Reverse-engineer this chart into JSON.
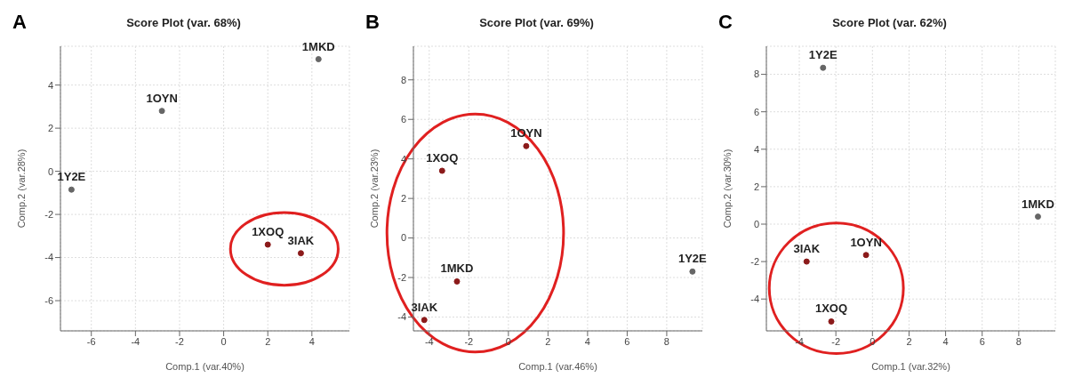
{
  "chart_data": [
    {
      "type": "scatter",
      "title": "Score Plot (var. 68%)",
      "xlabel": "Comp.1 (var.40%)",
      "ylabel": "Comp.2 (var.28%)",
      "xlim": [
        -7.4,
        5.7
      ],
      "ylim": [
        -7.4,
        5.8
      ],
      "xticks": [
        -6,
        -4,
        -2,
        0,
        2,
        4
      ],
      "yticks": [
        -6,
        -4,
        -2,
        0,
        2,
        4
      ],
      "grid": true,
      "marker": "circle",
      "series": [
        {
          "color": "#666666",
          "x": [
            4.3,
            -2.8,
            -6.9
          ],
          "values": [
            5.2,
            2.8,
            -0.85
          ]
        },
        {
          "color": "#8b1a1a",
          "x": [
            2.0,
            3.5
          ],
          "values": [
            -3.4,
            -3.8
          ]
        }
      ],
      "annotations": [
        "A",
        {
          "text": "1MKD",
          "x": 4.3,
          "y": 5.2
        },
        {
          "text": "1OYN",
          "x": -2.8,
          "y": 2.8
        },
        {
          "text": "1Y2E",
          "x": -6.9,
          "y": -0.85
        },
        {
          "text": "1XOQ",
          "x": 2.0,
          "y": -3.4
        },
        {
          "text": "3IAK",
          "x": 3.5,
          "y": -3.8
        }
      ]
    },
    {
      "type": "scatter",
      "title": "Score Plot (var. 69%)",
      "xlabel": "Comp.1 (var.46%)",
      "ylabel": "Comp.2 (var.23%)",
      "xlim": [
        -4.8,
        9.8
      ],
      "ylim": [
        -4.7,
        9.7
      ],
      "xticks": [
        -4,
        -2,
        0,
        2,
        4,
        6,
        8
      ],
      "yticks": [
        -4,
        -2,
        0,
        2,
        4,
        6,
        8
      ],
      "grid": true,
      "marker": "circle",
      "series": [
        {
          "color": "#666666",
          "x": [
            9.3
          ],
          "values": [
            -1.7
          ]
        },
        {
          "color": "#8b1a1a",
          "x": [
            0.9,
            -3.35,
            -2.6,
            -4.25
          ],
          "values": [
            4.65,
            3.4,
            -2.2,
            -4.15
          ]
        }
      ],
      "annotations": [
        "B",
        {
          "text": "1OYN",
          "x": 0.9,
          "y": 4.65
        },
        {
          "text": "1XOQ",
          "x": -3.35,
          "y": 3.4
        },
        {
          "text": "1MKD",
          "x": -2.6,
          "y": -2.2
        },
        {
          "text": "3IAK",
          "x": -4.25,
          "y": -4.15
        },
        {
          "text": "1Y2E",
          "x": 9.3,
          "y": -1.7
        }
      ]
    },
    {
      "type": "scatter",
      "title": "Score Plot (var. 62%)",
      "xlabel": "Comp.1 (var.32%)",
      "ylabel": "Comp.2 (var.30%)",
      "xlim": [
        -5.8,
        10
      ],
      "ylim": [
        -5.7,
        9.5
      ],
      "xticks": [
        -4,
        -2,
        0,
        2,
        4,
        6,
        8
      ],
      "yticks": [
        -4,
        -2,
        0,
        2,
        4,
        6,
        8
      ],
      "grid": true,
      "marker": "circle",
      "series": [
        {
          "color": "#666666",
          "x": [
            -2.7,
            9.05
          ],
          "values": [
            8.35,
            0.4
          ]
        },
        {
          "color": "#8b1a1a",
          "x": [
            -3.6,
            -0.35,
            -2.25
          ],
          "values": [
            -2.0,
            -1.65,
            -5.2
          ]
        }
      ],
      "annotations": [
        "C",
        {
          "text": "1Y2E",
          "x": -2.7,
          "y": 8.35
        },
        {
          "text": "1MKD",
          "x": 9.05,
          "y": 0.4
        },
        {
          "text": "3IAK",
          "x": -3.6,
          "y": -2.0
        },
        {
          "text": "1OYN",
          "x": -0.35,
          "y": -1.65
        },
        {
          "text": "1XOQ",
          "x": -2.25,
          "y": -5.2
        }
      ]
    }
  ]
}
